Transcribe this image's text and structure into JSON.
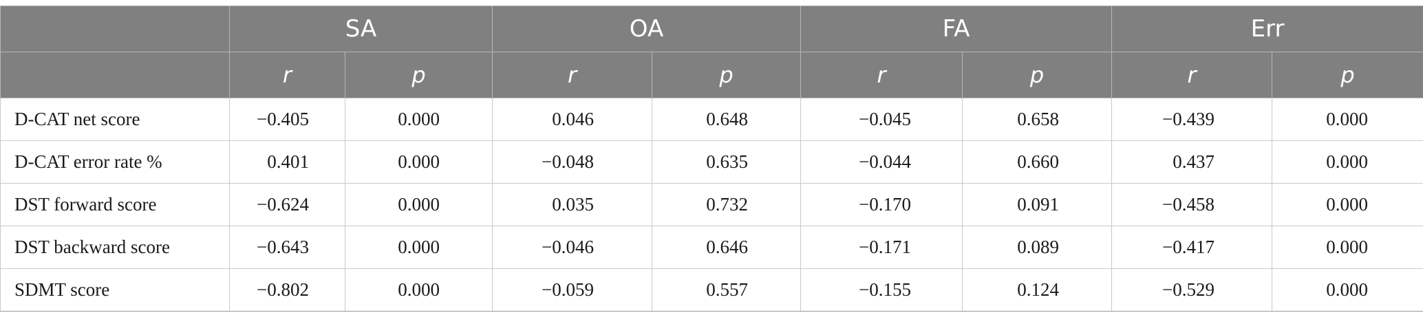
{
  "table": {
    "groups": [
      "SA",
      "OA",
      "FA",
      "Err"
    ],
    "stats": [
      "r",
      "p"
    ],
    "rows": [
      {
        "label": "D-CAT net score",
        "values": [
          "−0.405",
          "0.000",
          "0.046",
          "0.648",
          "−0.045",
          "0.658",
          "−0.439",
          "0.000"
        ]
      },
      {
        "label": "D-CAT error rate %",
        "values": [
          "0.401",
          "0.000",
          "−0.048",
          "0.635",
          "−0.044",
          "0.660",
          "0.437",
          "0.000"
        ]
      },
      {
        "label": "DST forward score",
        "values": [
          "−0.624",
          "0.000",
          "0.035",
          "0.732",
          "−0.170",
          "0.091",
          "−0.458",
          "0.000"
        ]
      },
      {
        "label": "DST backward score",
        "values": [
          "−0.643",
          "0.000",
          "−0.046",
          "0.646",
          "−0.171",
          "0.089",
          "−0.417",
          "0.000"
        ]
      },
      {
        "label": "SDMT score",
        "values": [
          "−0.802",
          "0.000",
          "−0.059",
          "0.557",
          "−0.155",
          "0.124",
          "−0.529",
          "0.000"
        ]
      }
    ]
  }
}
